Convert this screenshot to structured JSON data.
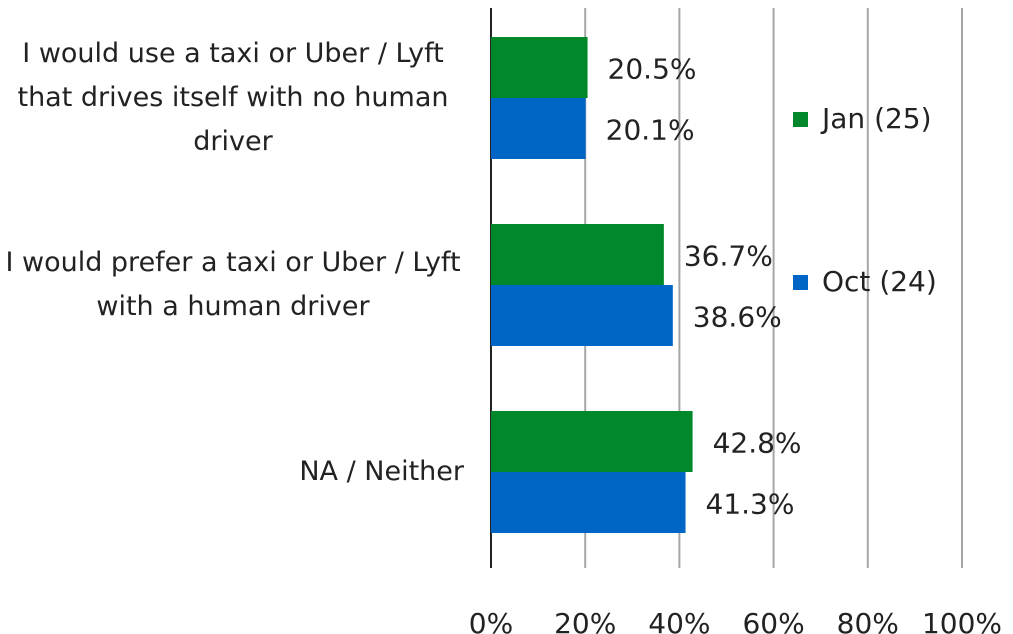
{
  "chart_data": {
    "type": "bar",
    "orientation": "horizontal",
    "categories": [
      "I would use a taxi or Uber / Lyft that drives itself with no human driver",
      "I would prefer a taxi or Uber / Lyft with a human driver",
      "NA / Neither"
    ],
    "series": [
      {
        "name": "Jan (25)",
        "color": "#00882b",
        "values": [
          20.5,
          36.7,
          42.8
        ],
        "value_labels": [
          "20.5%",
          "36.7%",
          "42.8%"
        ]
      },
      {
        "name": "Oct (24)",
        "color": "#0066c6",
        "values": [
          20.1,
          38.6,
          41.3
        ],
        "value_labels": [
          "20.1%",
          "38.6%",
          "41.3%"
        ]
      }
    ],
    "xlim": [
      0,
      100
    ],
    "xticks": [
      {
        "value": 0,
        "label": "0%"
      },
      {
        "value": 20,
        "label": "20%"
      },
      {
        "value": 40,
        "label": "40%"
      },
      {
        "value": 60,
        "label": "60%"
      },
      {
        "value": 80,
        "label": "80%"
      },
      {
        "value": 100,
        "label": "100%"
      }
    ],
    "grid": true,
    "legend": "right"
  }
}
